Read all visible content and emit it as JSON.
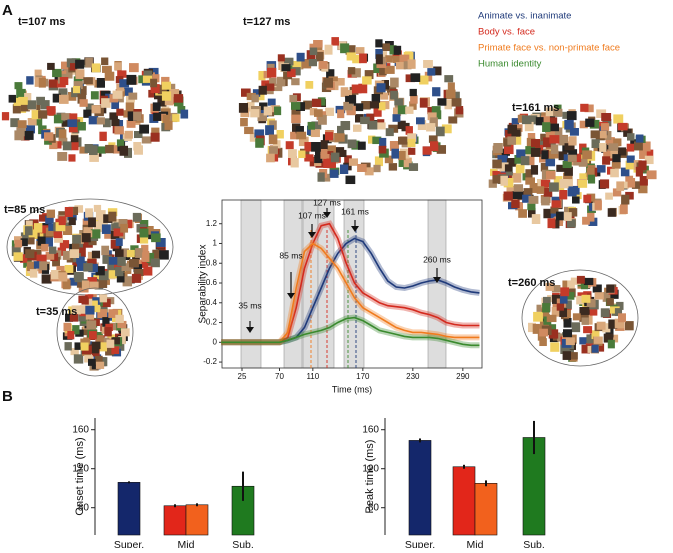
{
  "panels": [
    "A",
    "B"
  ],
  "snapshots": [
    "t=107 ms",
    "t=127 ms",
    "t=161 ms",
    "t=85 ms",
    "t=35 ms",
    "t=260 ms"
  ],
  "chart_data": [
    {
      "type": "line",
      "xlabel": "Time (ms)",
      "ylabel": "Separability index",
      "x": [
        0,
        10,
        20,
        30,
        40,
        50,
        60,
        70,
        80,
        90,
        100,
        110,
        120,
        130,
        140,
        150,
        160,
        170,
        180,
        190,
        200,
        210,
        220,
        230,
        240,
        250,
        260,
        270,
        280,
        290,
        300,
        310
      ],
      "xlim": [
        1,
        313
      ],
      "xticks": [
        25,
        70,
        110,
        170,
        230,
        290
      ],
      "ylim": [
        -0.26,
        1.44
      ],
      "yticks": [
        -0.2,
        0,
        0.2,
        0.4,
        0.6,
        0.8,
        1,
        1.2
      ],
      "annotations": [
        "35 ms",
        "85 ms",
        "107 ms",
        "127 ms",
        "161 ms",
        "260 ms"
      ],
      "series": [
        {
          "name": "Animate vs. inanimate",
          "color": "#1f3a7a",
          "values": [
            0,
            0,
            0,
            0,
            0,
            0,
            0,
            0,
            0.02,
            0.05,
            0.15,
            0.35,
            0.55,
            0.75,
            0.9,
            1.0,
            1.05,
            1.02,
            0.9,
            0.75,
            0.62,
            0.56,
            0.55,
            0.57,
            0.6,
            0.62,
            0.63,
            0.6,
            0.56,
            0.53,
            0.51,
            0.5
          ]
        },
        {
          "name": "Body vs. face",
          "color": "#d42a1e",
          "values": [
            0,
            0,
            0,
            0,
            0,
            0,
            0,
            0,
            0.05,
            0.35,
            0.75,
            1.0,
            1.18,
            1.2,
            1.05,
            0.8,
            0.6,
            0.5,
            0.45,
            0.4,
            0.37,
            0.36,
            0.35,
            0.33,
            0.3,
            0.28,
            0.25,
            0.2,
            0.18,
            0.17,
            0.17,
            0.17
          ]
        },
        {
          "name": "Primate face vs. non-primate face",
          "color": "#f07b1e",
          "values": [
            0,
            0,
            0,
            0,
            0,
            0,
            0,
            0,
            0.1,
            0.55,
            0.92,
            1.0,
            0.95,
            0.85,
            0.75,
            0.6,
            0.45,
            0.35,
            0.3,
            0.25,
            0.2,
            0.15,
            0.12,
            0.1,
            0.1,
            0.09,
            0.08,
            0.06,
            0.05,
            0.05,
            0.05,
            0.05
          ]
        },
        {
          "name": "Human identity",
          "color": "#3a8a2e",
          "values": [
            0,
            0,
            0,
            0,
            0,
            0,
            0,
            0,
            0.02,
            0.05,
            0.08,
            0.1,
            0.12,
            0.15,
            0.2,
            0.24,
            0.25,
            0.22,
            0.17,
            0.12,
            0.1,
            0.08,
            0.06,
            0.05,
            0.05,
            0.05,
            0.04,
            0.02,
            0,
            -0.02,
            -0.03,
            -0.03
          ]
        }
      ]
    },
    {
      "type": "bar",
      "ylabel": "Onset time (ms)",
      "categories": [
        "Super.",
        "Mid",
        null,
        "Sub."
      ],
      "values": [
        106,
        82,
        83,
        102
      ],
      "errors": [
        1,
        1.5,
        1.5,
        15
      ],
      "colors": [
        "#14276b",
        "#e2261a",
        "#f2611d",
        "#1f7a1f"
      ],
      "ylim": [
        52,
        172
      ],
      "yticks": [
        80,
        120,
        160
      ]
    },
    {
      "type": "bar",
      "ylabel": "Peak time (ms)",
      "categories": [
        "Super.",
        "Mid",
        null,
        "Sub."
      ],
      "values": [
        149,
        122,
        105,
        152
      ],
      "errors": [
        2,
        2,
        3,
        17
      ],
      "colors": [
        "#14276b",
        "#e2261a",
        "#f2611d",
        "#1f7a1f"
      ],
      "ylim": [
        52,
        172
      ],
      "yticks": [
        80,
        120,
        160
      ]
    }
  ]
}
